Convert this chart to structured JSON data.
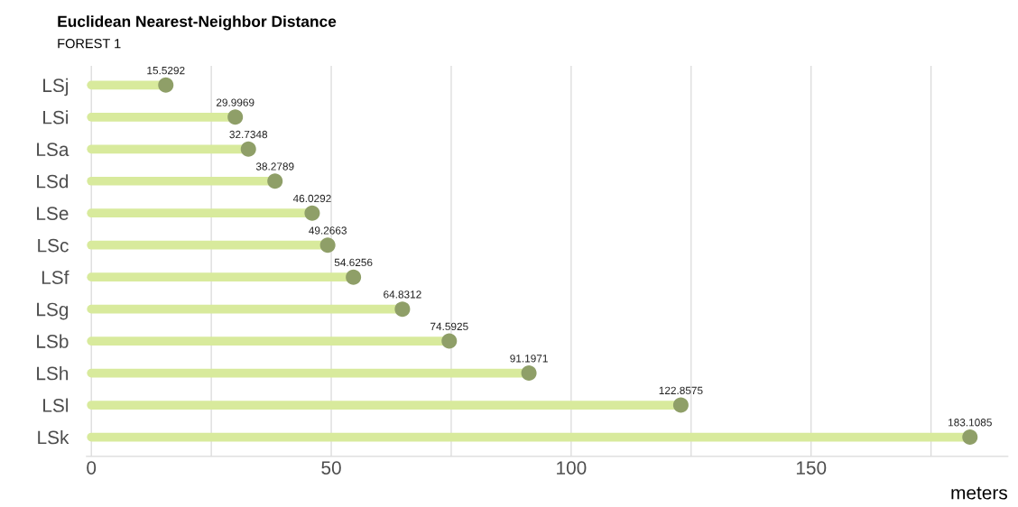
{
  "chart_data": {
    "type": "lollipop",
    "orientation": "horizontal",
    "title": "Euclidean Nearest-Neighbor Distance",
    "subtitle": "FOREST 1",
    "xlabel": "meters",
    "categories": [
      "LSj",
      "LSi",
      "LSa",
      "LSd",
      "LSe",
      "LSc",
      "LSf",
      "LSg",
      "LSb",
      "LSh",
      "LSl",
      "LSk"
    ],
    "color": "#d8ea9c",
    "series": [
      {
        "color": "#8f9f68",
        "values": [
          15.5292,
          29.9969,
          32.7348,
          38.2789,
          46.0292,
          49.2663,
          54.6256,
          64.8312,
          74.5925,
          91.1971,
          122.8575,
          183.1085
        ]
      }
    ],
    "xlim": [
      -1,
      191
    ],
    "xticks": [
      0,
      {
        "value": 25,
        "label": null
      },
      50,
      {
        "value": 75,
        "label": null
      },
      100,
      {
        "value": 125,
        "label": null
      },
      150,
      {
        "value": 175,
        "label": null
      }
    ],
    "grid": "x",
    "data_labels": true
  }
}
